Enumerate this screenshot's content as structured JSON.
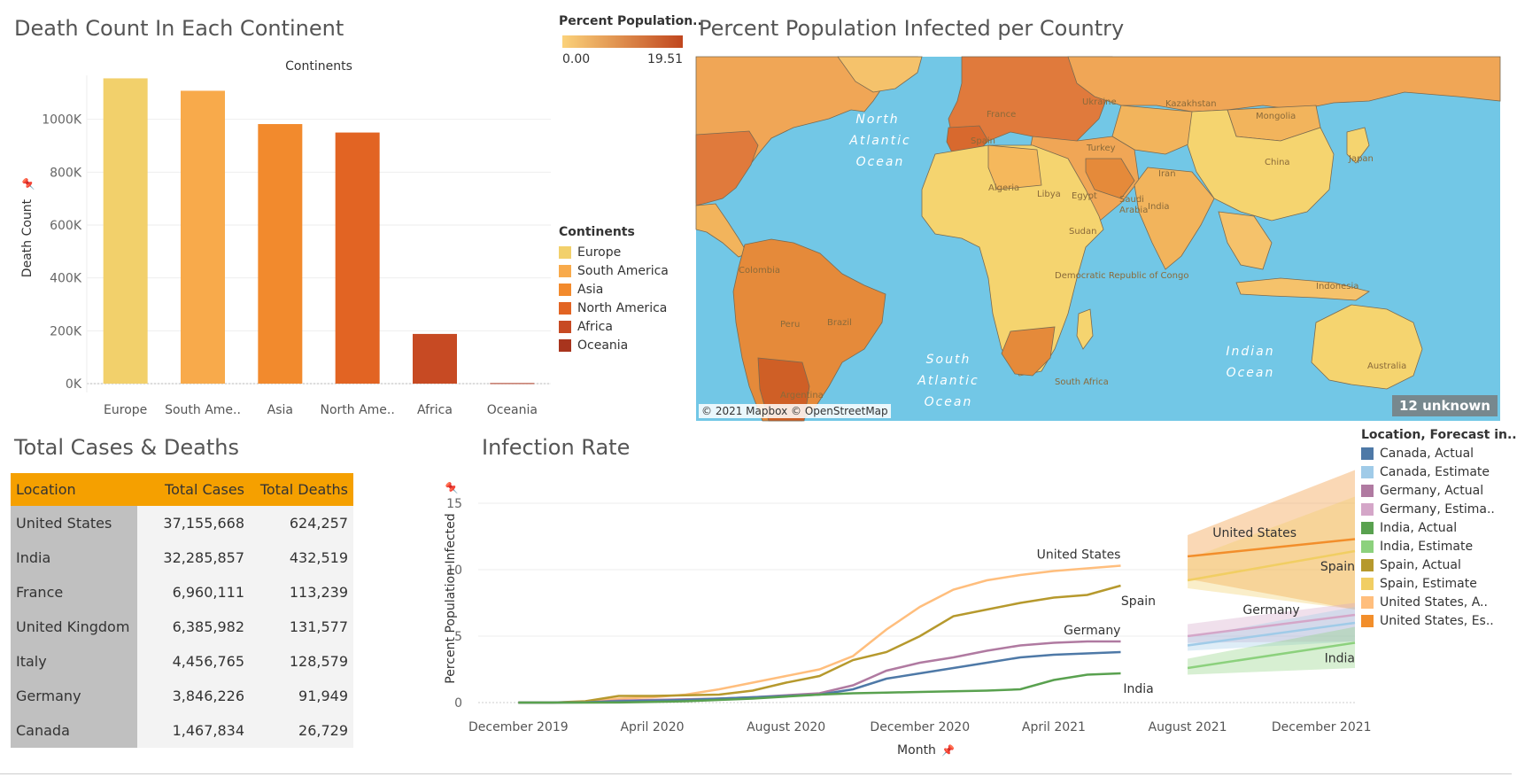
{
  "dashboard": {
    "death_count_title": "Death Count In Each Continent",
    "percent_pop_title": "Percent Population Infected per Country",
    "total_cases_title": "Total Cases & Deaths",
    "infection_rate_title": "Infection Rate"
  },
  "color_legend": {
    "title": "Percent Population..",
    "min_label": "0.00",
    "max_label": "19.51",
    "min_color": "#fbd27a",
    "max_color": "#c0461e"
  },
  "continent_legend": {
    "title": "Continents",
    "items": [
      {
        "label": "Europe",
        "color": "#f2d06b"
      },
      {
        "label": "South America",
        "color": "#f8aa4b"
      },
      {
        "label": "Asia",
        "color": "#f28a2d"
      },
      {
        "label": "North America",
        "color": "#e26423"
      },
      {
        "label": "Africa",
        "color": "#c74a23"
      },
      {
        "label": "Oceania",
        "color": "#a8341d"
      }
    ]
  },
  "map": {
    "attribution": "© 2021 Mapbox © OpenStreetMap",
    "unknown_badge": "12 unknown",
    "ocean_labels": [
      "North Atlantic Ocean",
      "South Atlantic Ocean",
      "Indian Ocean"
    ],
    "country_labels": [
      "Kazakhstan",
      "Mongolia",
      "China",
      "Japan",
      "Iran",
      "India",
      "Turkey",
      "France",
      "Spain",
      "Ukraine",
      "Algeria",
      "Libya",
      "Egypt",
      "Saudi Arabia",
      "Sudan",
      "Democratic Republic of Congo",
      "Colombia",
      "Brazil",
      "Peru",
      "Argentina",
      "South Africa",
      "Indonesia",
      "Australia"
    ]
  },
  "table": {
    "headers": [
      "Location",
      "Total Cases",
      "Total Deaths"
    ],
    "rows": [
      [
        "United States",
        "37,155,668",
        "624,257"
      ],
      [
        "India",
        "32,285,857",
        "432,519"
      ],
      [
        "France",
        "6,960,111",
        "113,239"
      ],
      [
        "United Kingdom",
        "6,385,982",
        "131,577"
      ],
      [
        "Italy",
        "4,456,765",
        "128,579"
      ],
      [
        "Germany",
        "3,846,226",
        "91,949"
      ],
      [
        "Canada",
        "1,467,834",
        "26,729"
      ]
    ]
  },
  "forecast_legend": {
    "title": "Location, Forecast in..",
    "items": [
      {
        "label": "Canada, Actual",
        "color": "#4e79a7"
      },
      {
        "label": "Canada, Estimate",
        "color": "#a0cbe8"
      },
      {
        "label": "Germany, Actual",
        "color": "#b07aa1"
      },
      {
        "label": "Germany, Estima..",
        "color": "#d4a6c8"
      },
      {
        "label": "India, Actual",
        "color": "#59a14f"
      },
      {
        "label": "India, Estimate",
        "color": "#8cd17d"
      },
      {
        "label": "Spain, Actual",
        "color": "#b6992d"
      },
      {
        "label": "Spain, Estimate",
        "color": "#f1ce63"
      },
      {
        "label": "United States, A..",
        "color": "#ffbe7d"
      },
      {
        "label": "United States, Es..",
        "color": "#f28e2b"
      }
    ]
  },
  "chart_data": [
    {
      "type": "bar",
      "title": "Death Count In Each Continent",
      "header": "Continents",
      "categories": [
        "Europe",
        "South Ame..",
        "Asia",
        "North Ame..",
        "Africa",
        "Oceania"
      ],
      "values": [
        1155000,
        1108000,
        982000,
        950000,
        188000,
        2000
      ],
      "colors": [
        "#f2d06b",
        "#f8aa4b",
        "#f28a2d",
        "#e26423",
        "#c74a23",
        "#a8341d"
      ],
      "ylabel": "Death Count",
      "yticks": [
        0,
        200000,
        400000,
        600000,
        800000,
        1000000
      ],
      "ytick_labels": [
        "0K",
        "200K",
        "400K",
        "600K",
        "800K",
        "1000K"
      ],
      "ylim": [
        0,
        1200000
      ]
    },
    {
      "type": "line",
      "title": "Infection Rate",
      "xlabel": "Month",
      "ylabel": "Percent Population Infected",
      "x_tick_labels": [
        "December 2019",
        "April 2020",
        "August 2020",
        "December 2020",
        "April 2021",
        "August 2021",
        "December 2021"
      ],
      "x_tick_months": [
        0,
        4,
        8,
        12,
        16,
        20,
        24
      ],
      "ylim": [
        0,
        17
      ],
      "yticks": [
        0,
        5,
        10,
        15
      ],
      "series": [
        {
          "name": "United States",
          "kind": "actual",
          "color": "#ffbe7d",
          "x": [
            0,
            1,
            2,
            3,
            4,
            5,
            6,
            7,
            8,
            9,
            10,
            11,
            12,
            13,
            14,
            15,
            16,
            17,
            18
          ],
          "values": [
            0,
            0,
            0.05,
            0.3,
            0.4,
            0.6,
            1.0,
            1.5,
            2.0,
            2.5,
            3.5,
            5.5,
            7.2,
            8.5,
            9.2,
            9.6,
            9.9,
            10.1,
            10.3
          ]
        },
        {
          "name": "Spain",
          "kind": "actual",
          "color": "#b6992d",
          "x": [
            0,
            1,
            2,
            3,
            4,
            5,
            6,
            7,
            8,
            9,
            10,
            11,
            12,
            13,
            14,
            15,
            16,
            17,
            18
          ],
          "values": [
            0,
            0,
            0.1,
            0.5,
            0.5,
            0.55,
            0.6,
            0.9,
            1.5,
            2.0,
            3.2,
            3.8,
            5.0,
            6.5,
            7.0,
            7.5,
            7.9,
            8.1,
            8.8
          ]
        },
        {
          "name": "Germany",
          "kind": "actual",
          "color": "#b07aa1",
          "x": [
            0,
            1,
            2,
            3,
            4,
            5,
            6,
            7,
            8,
            9,
            10,
            11,
            12,
            13,
            14,
            15,
            16,
            17,
            18
          ],
          "values": [
            0,
            0,
            0.02,
            0.15,
            0.2,
            0.25,
            0.3,
            0.4,
            0.55,
            0.7,
            1.3,
            2.4,
            3.0,
            3.4,
            3.9,
            4.3,
            4.5,
            4.6,
            4.6
          ]
        },
        {
          "name": "Canada",
          "kind": "actual",
          "color": "#4e79a7",
          "x": [
            0,
            1,
            2,
            3,
            4,
            5,
            6,
            7,
            8,
            9,
            10,
            11,
            12,
            13,
            14,
            15,
            16,
            17,
            18
          ],
          "values": [
            0,
            0,
            0.02,
            0.1,
            0.15,
            0.2,
            0.3,
            0.4,
            0.5,
            0.6,
            1.0,
            1.8,
            2.2,
            2.6,
            3.0,
            3.4,
            3.6,
            3.7,
            3.8
          ]
        },
        {
          "name": "India",
          "kind": "actual",
          "color": "#59a14f",
          "x": [
            0,
            1,
            2,
            3,
            4,
            5,
            6,
            7,
            8,
            9,
            10,
            11,
            12,
            13,
            14,
            15,
            16,
            17,
            18
          ],
          "values": [
            0,
            0,
            0,
            0.01,
            0.05,
            0.1,
            0.2,
            0.3,
            0.45,
            0.6,
            0.7,
            0.75,
            0.8,
            0.85,
            0.9,
            1.0,
            1.7,
            2.1,
            2.2
          ]
        },
        {
          "name": "United States",
          "kind": "estimate",
          "color": "#f28e2b",
          "x": [
            20,
            25
          ],
          "values": [
            11.0,
            12.3
          ],
          "band_low": [
            9.3,
            7.0
          ],
          "band_high": [
            12.6,
            17.5
          ]
        },
        {
          "name": "Spain",
          "kind": "estimate",
          "color": "#f1ce63",
          "x": [
            20,
            25
          ],
          "values": [
            9.2,
            11.4
          ],
          "band_low": [
            8.6,
            7.0
          ],
          "band_high": [
            10.8,
            15.5
          ]
        },
        {
          "name": "Germany",
          "kind": "estimate",
          "color": "#d4a6c8",
          "x": [
            20,
            25
          ],
          "values": [
            5.0,
            6.6
          ],
          "band_low": [
            4.5,
            4.6
          ],
          "band_high": [
            5.9,
            7.5
          ]
        },
        {
          "name": "Canada",
          "kind": "estimate",
          "color": "#a0cbe8",
          "x": [
            20,
            25
          ],
          "values": [
            4.3,
            6.0
          ],
          "band_low": [
            3.9,
            4.6
          ],
          "band_high": [
            4.9,
            7.2
          ]
        },
        {
          "name": "India",
          "kind": "estimate",
          "color": "#8cd17d",
          "x": [
            20,
            25
          ],
          "values": [
            2.6,
            4.5
          ],
          "band_low": [
            2.1,
            2.6
          ],
          "band_high": [
            3.3,
            5.7
          ]
        }
      ],
      "annotations": [
        {
          "text": "United States",
          "x": 18,
          "y": 10.3,
          "pos": "above-left"
        },
        {
          "text": "Spain",
          "x": 18,
          "y": 8.8,
          "pos": "below"
        },
        {
          "text": "Germany",
          "x": 18,
          "y": 4.6,
          "pos": "above-left"
        },
        {
          "text": "India",
          "x": 18,
          "y": 2.2,
          "pos": "below"
        },
        {
          "text": "United States",
          "x": 22,
          "y": 11.8,
          "pos": "above"
        },
        {
          "text": "Spain",
          "x": 25,
          "y": 11.4,
          "pos": "below-left"
        },
        {
          "text": "Germany",
          "x": 22.5,
          "y": 6.0,
          "pos": "above"
        },
        {
          "text": "India",
          "x": 25,
          "y": 4.5,
          "pos": "below-left"
        }
      ]
    }
  ]
}
